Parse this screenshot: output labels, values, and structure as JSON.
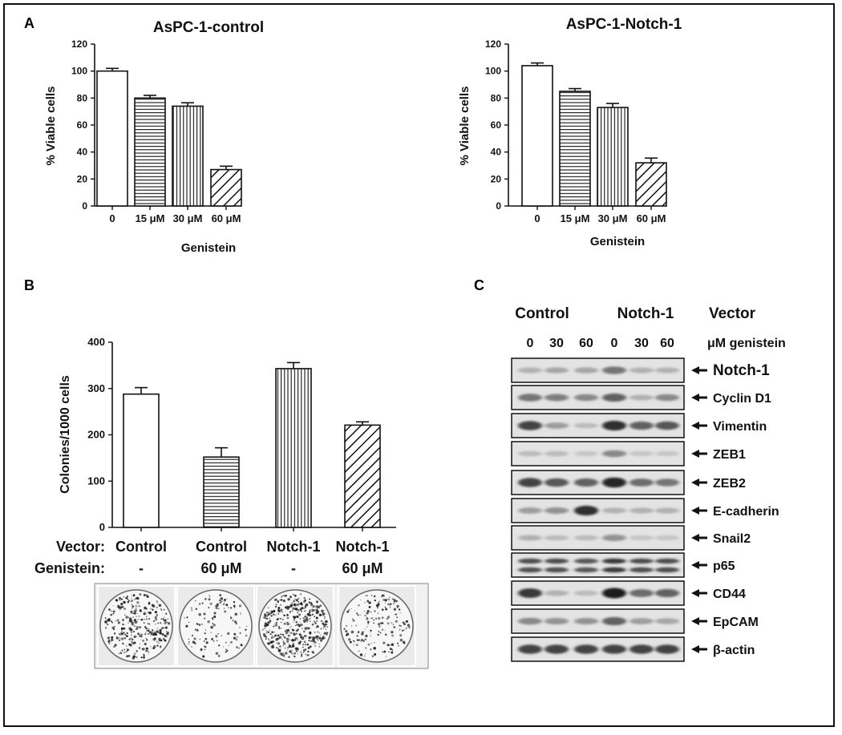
{
  "panel_labels": {
    "a": "A",
    "b": "B",
    "c": "C"
  },
  "chart_data": [
    {
      "id": "A-left",
      "type": "bar",
      "title": "AsPC-1-control",
      "xlabel": "Genistein",
      "ylabel": "% Viable cells",
      "categories": [
        "0",
        "15 μM",
        "30 μM",
        "60 μM"
      ],
      "values": [
        100,
        80,
        74,
        27
      ],
      "errors": [
        2,
        2,
        2.5,
        2.5
      ],
      "patterns": [
        "none",
        "horizontal",
        "vertical",
        "diagonal"
      ],
      "ylim": [
        0,
        120
      ],
      "yticks": [
        0,
        20,
        40,
        60,
        80,
        100,
        120
      ],
      "grid": false
    },
    {
      "id": "A-right",
      "type": "bar",
      "title": "AsPC-1-Notch-1",
      "xlabel": "Genistein",
      "ylabel": "% Viable cells",
      "categories": [
        "0",
        "15 μM",
        "30 μM",
        "60 μM"
      ],
      "values": [
        104,
        85,
        73,
        32
      ],
      "errors": [
        2,
        2,
        3,
        3.5
      ],
      "patterns": [
        "none",
        "horizontal",
        "vertical",
        "diagonal"
      ],
      "ylim": [
        0,
        120
      ],
      "yticks": [
        0,
        20,
        40,
        60,
        80,
        100,
        120
      ],
      "grid": false
    },
    {
      "id": "B",
      "type": "bar",
      "title": "",
      "xlabel": "",
      "ylabel": "Colonies/1000 cells",
      "categories": [
        "Control",
        "Control",
        "Notch-1",
        "Notch-1"
      ],
      "values": [
        288,
        152,
        343,
        221
      ],
      "errors": [
        14,
        20,
        13,
        7
      ],
      "patterns": [
        "none",
        "horizontal",
        "vertical",
        "diagonal"
      ],
      "ylim": [
        0,
        400
      ],
      "yticks": [
        0,
        100,
        200,
        300,
        400
      ],
      "grid": false,
      "row_labels": [
        {
          "label": "Vector:",
          "values": [
            "Control",
            "Control",
            "Notch-1",
            "Notch-1"
          ]
        },
        {
          "label": "Genistein:",
          "values": [
            "-",
            "60 μM",
            "-",
            "60 μM"
          ]
        }
      ]
    }
  ],
  "colony_plates": [
    {
      "vector": "Control",
      "genistein": "-",
      "density": 0.75
    },
    {
      "vector": "Control",
      "genistein": "60 μM",
      "density": 0.28
    },
    {
      "vector": "Notch-1",
      "genistein": "-",
      "density": 1.0
    },
    {
      "vector": "Notch-1",
      "genistein": "60 μM",
      "density": 0.42
    }
  ],
  "western_blot": {
    "group_headers": [
      "Control",
      "Notch-1",
      "Vector"
    ],
    "doses": [
      "0",
      "30",
      "60",
      "0",
      "30",
      "60"
    ],
    "dose_unit": "μM genistein",
    "proteins": [
      {
        "name": "Notch-1",
        "intensities": [
          0.25,
          0.3,
          0.3,
          0.55,
          0.25,
          0.25
        ]
      },
      {
        "name": "Cyclin D1",
        "intensities": [
          0.55,
          0.5,
          0.45,
          0.65,
          0.25,
          0.45
        ]
      },
      {
        "name": "Vimentin",
        "intensities": [
          0.8,
          0.35,
          0.2,
          0.9,
          0.65,
          0.7
        ]
      },
      {
        "name": "ZEB1",
        "intensities": [
          0.2,
          0.2,
          0.15,
          0.45,
          0.15,
          0.15
        ]
      },
      {
        "name": "ZEB2",
        "intensities": [
          0.8,
          0.7,
          0.65,
          0.95,
          0.6,
          0.55
        ]
      },
      {
        "name": "E-cadherin",
        "intensities": [
          0.35,
          0.4,
          0.9,
          0.25,
          0.25,
          0.25
        ]
      },
      {
        "name": "Snail2",
        "intensities": [
          0.25,
          0.2,
          0.2,
          0.4,
          0.15,
          0.15
        ]
      },
      {
        "name": "p65",
        "intensities": [
          0.75,
          0.75,
          0.7,
          0.85,
          0.75,
          0.75
        ]
      },
      {
        "name": "CD44",
        "intensities": [
          0.85,
          0.25,
          0.2,
          1.0,
          0.6,
          0.65
        ]
      },
      {
        "name": "EpCAM",
        "intensities": [
          0.45,
          0.4,
          0.4,
          0.65,
          0.35,
          0.3
        ]
      },
      {
        "name": "β-actin",
        "intensities": [
          0.8,
          0.8,
          0.8,
          0.8,
          0.8,
          0.8
        ]
      }
    ],
    "colors": {
      "band": "#1a1a1a",
      "membrane": "#e3e3e3"
    }
  }
}
